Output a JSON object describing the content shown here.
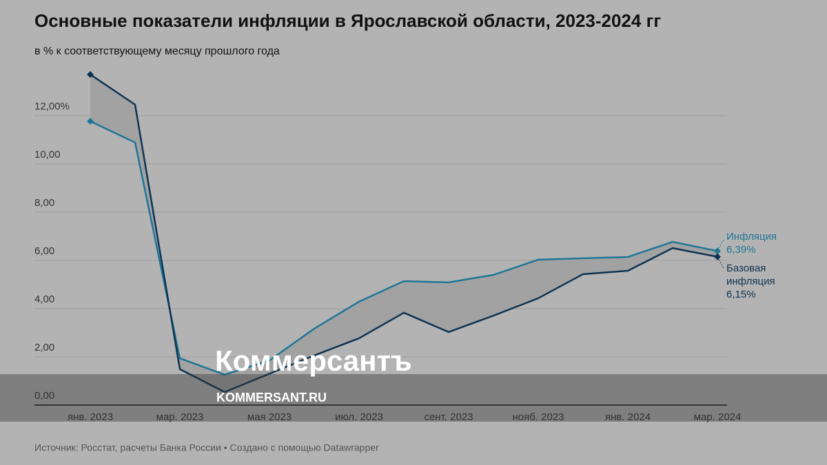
{
  "chart_data": {
    "type": "line",
    "title": "Основные показатели инфляции в Ярославской области, 2023-2024 гг",
    "subtitle": "в % к соответствующему месяцу прошлого года",
    "source": "Источник: Росстат, расчеты Банка России • Создано с помощью Datawrapper",
    "categories": [
      "янв. 2023",
      null,
      "мар. 2023",
      null,
      "мая 2023",
      null,
      "июл. 2023",
      null,
      "сент. 2023",
      null,
      "нояб. 2023",
      null,
      "янв. 2024",
      null,
      "мар. 2024"
    ],
    "series": [
      {
        "name": "Инфляция",
        "color": "#1e7696",
        "values": [
          11.77,
          10.89,
          1.94,
          1.26,
          1.85,
          3.17,
          4.29,
          5.14,
          5.09,
          5.4,
          6.03,
          6.09,
          6.14,
          6.77,
          6.39
        ],
        "value_labels": [
          null,
          null,
          null,
          null,
          null,
          null,
          null,
          null,
          null,
          null,
          null,
          null,
          null,
          null,
          "6,39%"
        ]
      },
      {
        "name": "Базовая инфляция",
        "color": "#0e3352",
        "values": [
          13.71,
          12.46,
          1.49,
          0.54,
          1.3,
          2.06,
          2.77,
          3.83,
          3.03,
          3.71,
          4.43,
          5.43,
          5.57,
          6.51,
          6.15
        ],
        "value_labels": [
          null,
          null,
          null,
          null,
          null,
          null,
          null,
          null,
          null,
          null,
          null,
          null,
          null,
          null,
          "6,15%"
        ]
      }
    ],
    "ylim": [
      0,
      14
    ],
    "yticks": [
      {
        "value": 0,
        "label": "0,00"
      },
      {
        "value": 2,
        "label": "2,00"
      },
      {
        "value": 4,
        "label": "4,00"
      },
      {
        "value": 6,
        "label": "6,00"
      },
      {
        "value": 8,
        "label": "8,00"
      },
      {
        "value": 10,
        "label": "10,00"
      },
      {
        "value": 12,
        "label": "12,00%"
      }
    ],
    "grid": true
  },
  "watermark": {
    "logo": "Коммерсантъ",
    "url": "KOMMERSANT.RU"
  }
}
